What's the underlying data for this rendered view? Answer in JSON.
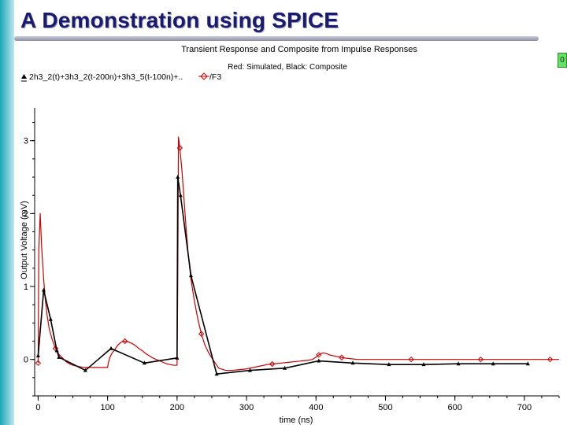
{
  "slide": {
    "title": "A Demonstration using SPICE",
    "corner_tag": "0"
  },
  "chart_data": {
    "type": "line",
    "title": "Transient Response and Composite from Impulse Responses",
    "subtitle": "Red: Simulated, Black: Composite",
    "xlabel": "time (ns)",
    "ylabel": "Output Voltage (mV)",
    "xlim": [
      -5,
      750
    ],
    "ylim": [
      -0.5,
      3.45
    ],
    "x_ticks": [
      0,
      100,
      200,
      300,
      400,
      500,
      600,
      700
    ],
    "y_ticks": [
      0,
      1,
      2,
      3
    ],
    "grid": false,
    "legend": [
      "2h3_2(t)+3h3_2(t-200n)+3h3_5(t-100n)+..",
      "/F3"
    ],
    "colors": {
      "simulated": "#cc0000",
      "composite": "#000000"
    },
    "series": [
      {
        "name": "/F3",
        "x": [
          0,
          1,
          3,
          5,
          8,
          10,
          13,
          16,
          20,
          25,
          30,
          35,
          40,
          45,
          50,
          55,
          60,
          65,
          70,
          75,
          80,
          85,
          90,
          95,
          99,
          100,
          101,
          103,
          106,
          110,
          115,
          120,
          125,
          130,
          135,
          140,
          145,
          150,
          155,
          160,
          165,
          170,
          175,
          180,
          185,
          190,
          195,
          199,
          200,
          201,
          202,
          204,
          207,
          210,
          213,
          216,
          220,
          225,
          230,
          235,
          240,
          245,
          250,
          255,
          260,
          270,
          280,
          290,
          300,
          310,
          320,
          330,
          340,
          350,
          360,
          370,
          380,
          390,
          395,
          400,
          405,
          410,
          415,
          420,
          430,
          440,
          450,
          460,
          470,
          480,
          500,
          550,
          600,
          650,
          700,
          750
        ],
        "y": [
          -0.05,
          1.5,
          2.0,
          1.55,
          1.1,
          0.85,
          0.6,
          0.42,
          0.28,
          0.15,
          0.07,
          0.02,
          -0.03,
          -0.06,
          -0.08,
          -0.09,
          -0.1,
          -0.11,
          -0.11,
          -0.11,
          -0.11,
          -0.11,
          -0.11,
          -0.11,
          -0.11,
          -0.11,
          -0.05,
          0.02,
          0.08,
          0.13,
          0.2,
          0.24,
          0.25,
          0.24,
          0.22,
          0.19,
          0.15,
          0.12,
          0.08,
          0.05,
          0.02,
          0.0,
          -0.02,
          -0.04,
          -0.06,
          -0.07,
          -0.08,
          -0.08,
          -0.08,
          1.0,
          3.05,
          2.9,
          2.6,
          2.2,
          1.8,
          1.45,
          1.1,
          0.8,
          0.55,
          0.35,
          0.2,
          0.1,
          0.02,
          -0.05,
          -0.12,
          -0.15,
          -0.15,
          -0.14,
          -0.13,
          -0.11,
          -0.09,
          -0.07,
          -0.06,
          -0.05,
          -0.04,
          -0.03,
          -0.02,
          -0.01,
          0.0,
          0.03,
          0.07,
          0.09,
          0.08,
          0.06,
          0.04,
          0.02,
          0.01,
          0.0,
          0.0,
          0.0,
          0.0,
          0.0,
          0.0,
          0.0,
          0.0,
          0.0
        ]
      },
      {
        "name": "2h3_2(t)+3h3_2(t-200n)+3h3_5(t-100n)+..",
        "x": [
          0,
          8,
          18,
          27,
          30,
          68,
          105,
          153,
          200,
          201,
          205,
          220,
          257,
          305,
          355,
          404,
          453,
          505,
          555,
          605,
          655,
          705
        ],
        "y": [
          0.05,
          0.95,
          0.55,
          0.12,
          0.03,
          -0.15,
          0.15,
          -0.05,
          0.02,
          2.5,
          2.25,
          1.15,
          -0.2,
          -0.15,
          -0.12,
          -0.02,
          -0.05,
          -0.07,
          -0.07,
          -0.06,
          -0.06,
          -0.06
        ]
      }
    ]
  }
}
